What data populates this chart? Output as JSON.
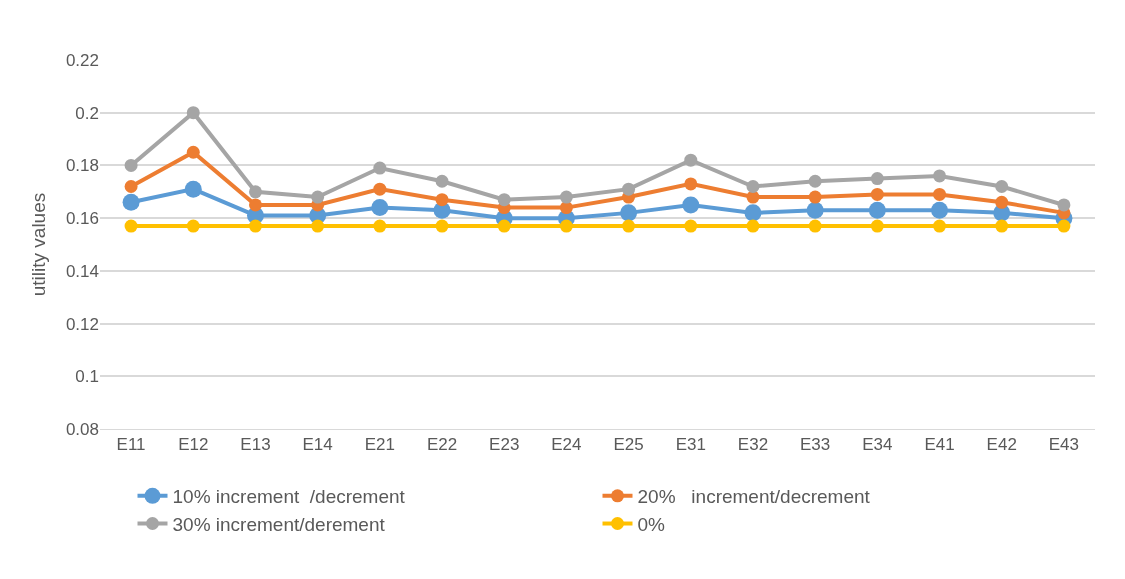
{
  "chart_data": {
    "type": "line",
    "ylabel": "utility values",
    "categories": [
      "E11",
      "E12",
      "E13",
      "E14",
      "E21",
      "E22",
      "E23",
      "E24",
      "E25",
      "E31",
      "E32",
      "E33",
      "E34",
      "E41",
      "E42",
      "E43"
    ],
    "series": [
      {
        "name": "10% increment  /decrement",
        "color": "#5b9bd5",
        "values": [
          0.166,
          0.171,
          0.161,
          0.161,
          0.164,
          0.163,
          0.16,
          0.16,
          0.162,
          0.165,
          0.162,
          0.163,
          0.163,
          0.163,
          0.162,
          0.16
        ]
      },
      {
        "name": "20%   increment/decrement",
        "color": "#ed7d31",
        "values": [
          0.172,
          0.185,
          0.165,
          0.165,
          0.171,
          0.167,
          0.164,
          0.164,
          0.168,
          0.173,
          0.168,
          0.168,
          0.169,
          0.169,
          0.166,
          0.162
        ]
      },
      {
        "name": "30% increment/derement",
        "color": "#a5a5a5",
        "values": [
          0.18,
          0.2,
          0.17,
          0.168,
          0.179,
          0.174,
          0.167,
          0.168,
          0.171,
          0.182,
          0.172,
          0.174,
          0.175,
          0.176,
          0.172,
          0.165
        ]
      },
      {
        "name": "0%",
        "color": "#ffc000",
        "values": [
          0.157,
          0.157,
          0.157,
          0.157,
          0.157,
          0.157,
          0.157,
          0.157,
          0.157,
          0.157,
          0.157,
          0.157,
          0.157,
          0.157,
          0.157,
          0.157
        ]
      }
    ],
    "ylim": [
      0.08,
      0.22
    ],
    "yticks": [
      0.08,
      0.1,
      0.12,
      0.14,
      0.16,
      0.18,
      0.2,
      0.22
    ],
    "grid": "y",
    "legend": "bottom",
    "marker": "circle",
    "line_style": "solid"
  }
}
